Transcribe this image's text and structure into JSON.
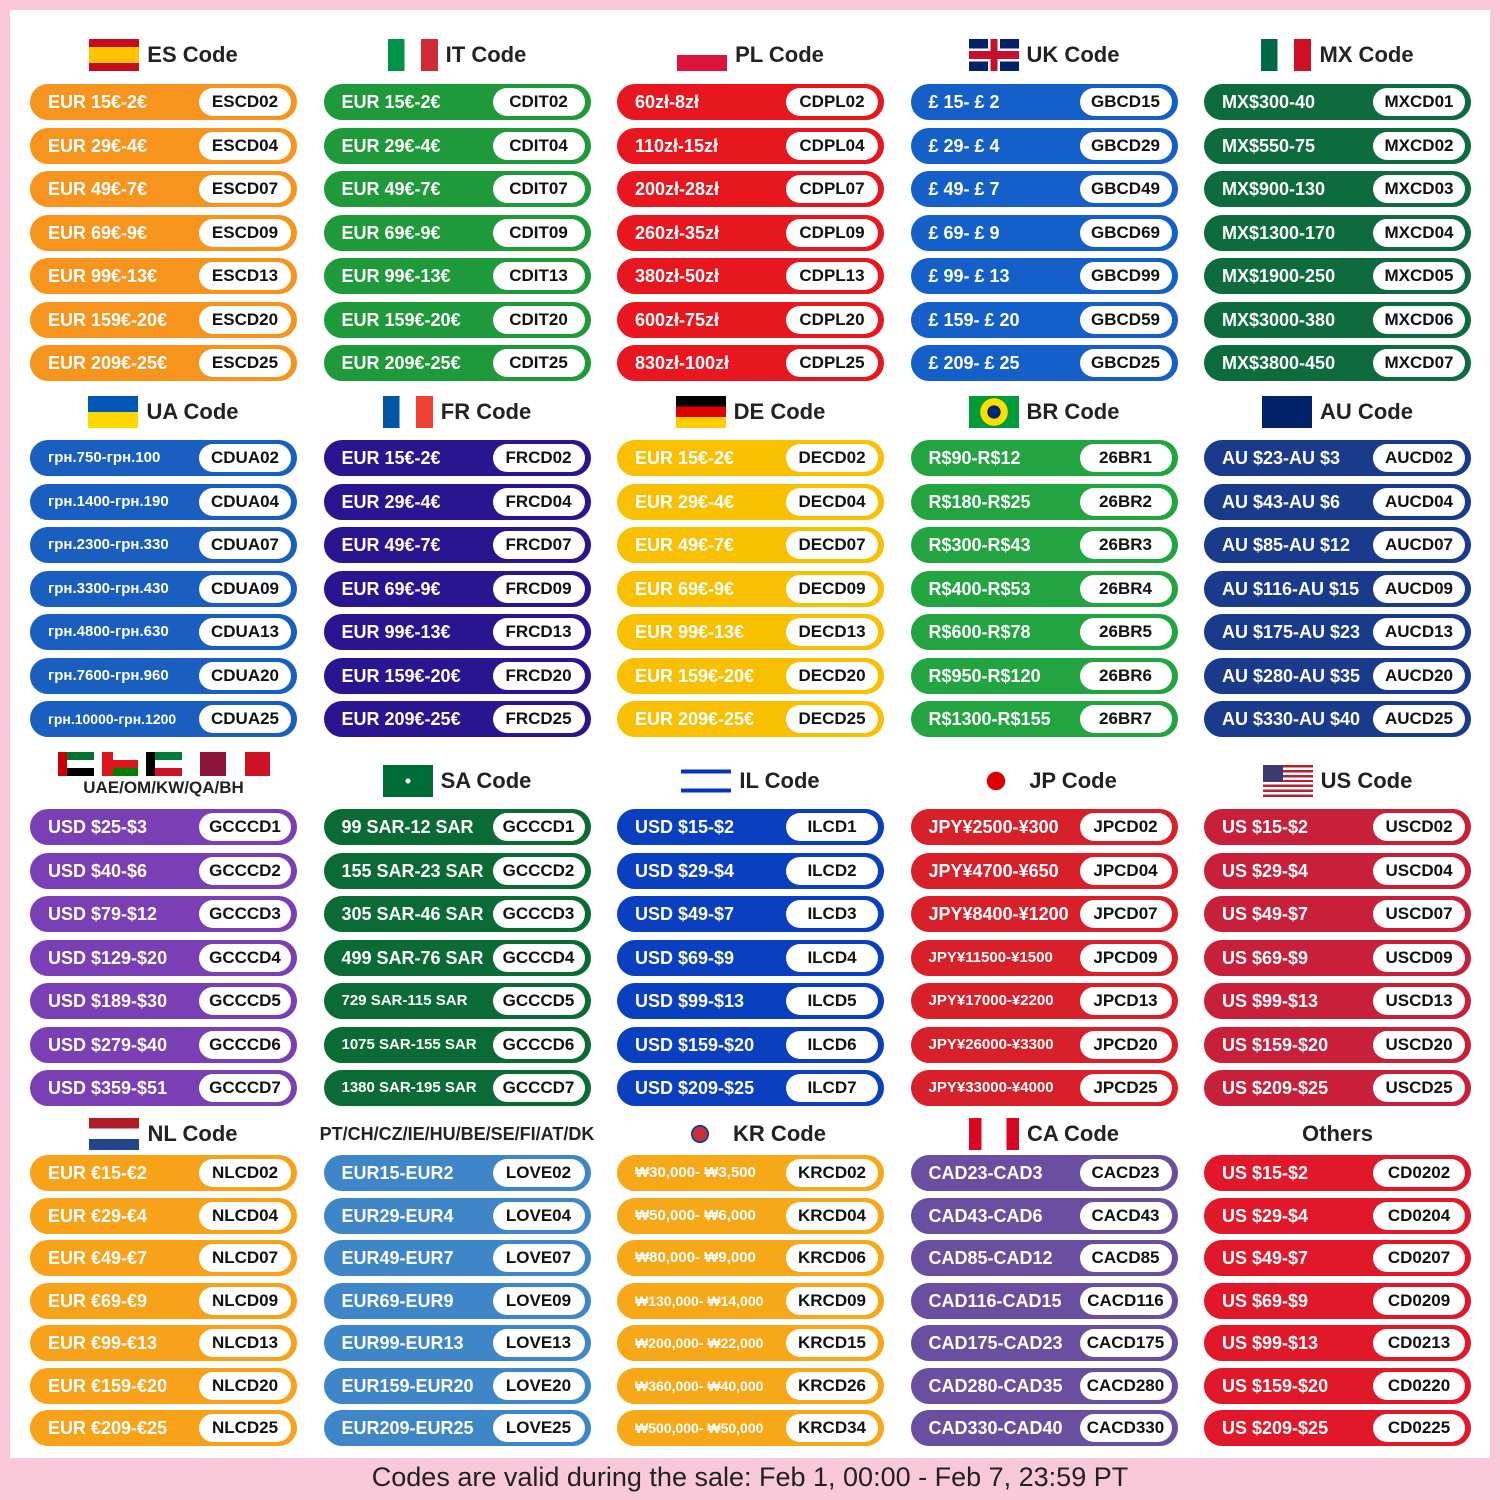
{
  "sections": [
    {
      "title": "ES Code",
      "color": "#f7941d",
      "rows": [
        [
          "EUR 15€-2€",
          "ESCD02"
        ],
        [
          "EUR 29€-4€",
          "ESCD04"
        ],
        [
          "EUR 49€-7€",
          "ESCD07"
        ],
        [
          "EUR 69€-9€",
          "ESCD09"
        ],
        [
          "EUR 99€-13€",
          "ESCD13"
        ],
        [
          "EUR 159€-20€",
          "ESCD20"
        ],
        [
          "EUR 209€-25€",
          "ESCD25"
        ]
      ]
    },
    {
      "title": "IT Code",
      "color": "#1e9a3a",
      "rows": [
        [
          "EUR 15€-2€",
          "CDIT02"
        ],
        [
          "EUR 29€-4€",
          "CDIT04"
        ],
        [
          "EUR 49€-7€",
          "CDIT07"
        ],
        [
          "EUR 69€-9€",
          "CDIT09"
        ],
        [
          "EUR 99€-13€",
          "CDIT13"
        ],
        [
          "EUR 159€-20€",
          "CDIT20"
        ],
        [
          "EUR 209€-25€",
          "CDIT25"
        ]
      ]
    },
    {
      "title": "PL Code",
      "color": "#e8161f",
      "rows": [
        [
          "60zł-8zł",
          "CDPL02"
        ],
        [
          "110zł-15zł",
          "CDPL04"
        ],
        [
          "200zł-28zł",
          "CDPL07"
        ],
        [
          "260zł-35zł",
          "CDPL09"
        ],
        [
          "380zł-50zł",
          "CDPL13"
        ],
        [
          "600zł-75zł",
          "CDPL20"
        ],
        [
          "830zł-100zł",
          "CDPL25"
        ]
      ]
    },
    {
      "title": "UK Code",
      "color": "#1560c8",
      "rows": [
        [
          "£ 15- £ 2",
          "GBCD15"
        ],
        [
          "£ 29- £ 4",
          "GBCD29"
        ],
        [
          "£ 49- £ 7",
          "GBCD49"
        ],
        [
          "£ 69- £ 9",
          "GBCD69"
        ],
        [
          "£ 99- £ 13",
          "GBCD99"
        ],
        [
          "£ 159- £ 20",
          "GBCD59"
        ],
        [
          "£ 209- £ 25",
          "GBCD25"
        ]
      ]
    },
    {
      "title": "MX Code",
      "color": "#0d6b3e",
      "rows": [
        [
          "MX$300-40",
          "MXCD01"
        ],
        [
          "MX$550-75",
          "MXCD02"
        ],
        [
          "MX$900-130",
          "MXCD03"
        ],
        [
          "MX$1300-170",
          "MXCD04"
        ],
        [
          "MX$1900-250",
          "MXCD05"
        ],
        [
          "MX$3000-380",
          "MXCD06"
        ],
        [
          "MX$3800-450",
          "MXCD07"
        ]
      ]
    },
    {
      "title": "UA Code",
      "color": "#1a5fc0",
      "rows": [
        [
          "грн.750-грн.100",
          "CDUA02"
        ],
        [
          "грн.1400-грн.190",
          "CDUA04"
        ],
        [
          "грн.2300-грн.330",
          "CDUA07"
        ],
        [
          "грн.3300-грн.430",
          "CDUA09"
        ],
        [
          "грн.4800-грн.630",
          "CDUA13"
        ],
        [
          "грн.7600-грн.960",
          "CDUA20"
        ],
        [
          "грн.10000-грн.1200",
          "CDUA25"
        ]
      ]
    },
    {
      "title": "FR Code",
      "color": "#2a1590",
      "rows": [
        [
          "EUR 15€-2€",
          "FRCD02"
        ],
        [
          "EUR 29€-4€",
          "FRCD04"
        ],
        [
          "EUR 49€-7€",
          "FRCD07"
        ],
        [
          "EUR 69€-9€",
          "FRCD09"
        ],
        [
          "EUR 99€-13€",
          "FRCD13"
        ],
        [
          "EUR 159€-20€",
          "FRCD20"
        ],
        [
          "EUR 209€-25€",
          "FRCD25"
        ]
      ]
    },
    {
      "title": "DE Code",
      "color": "#f8c000",
      "rows": [
        [
          "EUR 15€-2€",
          "DECD02"
        ],
        [
          "EUR 29€-4€",
          "DECD04"
        ],
        [
          "EUR 49€-7€",
          "DECD07"
        ],
        [
          "EUR 69€-9€",
          "DECD09"
        ],
        [
          "EUR 99€-13€",
          "DECD13"
        ],
        [
          "EUR 159€-20€",
          "DECD20"
        ],
        [
          "EUR 209€-25€",
          "DECD25"
        ]
      ]
    },
    {
      "title": "BR Code",
      "color": "#22a540",
      "rows": [
        [
          "R$90-R$12",
          "26BR1"
        ],
        [
          "R$180-R$25",
          "26BR2"
        ],
        [
          "R$300-R$43",
          "26BR3"
        ],
        [
          "R$400-R$53",
          "26BR4"
        ],
        [
          "R$600-R$78",
          "26BR5"
        ],
        [
          "R$950-R$120",
          "26BR6"
        ],
        [
          "R$1300-R$155",
          "26BR7"
        ]
      ]
    },
    {
      "title": "AU Code",
      "color": "#1a3a8c",
      "rows": [
        [
          "AU $23-AU $3",
          "AUCD02"
        ],
        [
          "AU $43-AU $6",
          "AUCD04"
        ],
        [
          "AU $85-AU $12",
          "AUCD07"
        ],
        [
          "AU $116-AU $15",
          "AUCD09"
        ],
        [
          "AU $175-AU $23",
          "AUCD13"
        ],
        [
          "AU $280-AU $35",
          "AUCD20"
        ],
        [
          "AU $330-AU $40",
          "AUCD25"
        ]
      ]
    },
    {
      "title": "UAE/OM/KW/QA/BH",
      "color": "#7b3fb5",
      "rows": [
        [
          "USD $25-$3",
          "GCCCD1"
        ],
        [
          "USD $40-$6",
          "GCCCD2"
        ],
        [
          "USD $79-$12",
          "GCCCD3"
        ],
        [
          "USD $129-$20",
          "GCCCD4"
        ],
        [
          "USD $189-$30",
          "GCCCD5"
        ],
        [
          "USD $279-$40",
          "GCCCD6"
        ],
        [
          "USD $359-$51",
          "GCCCD7"
        ]
      ]
    },
    {
      "title": "SA Code",
      "color": "#0a6b35",
      "rows": [
        [
          "99 SAR-12 SAR",
          "GCCCD1"
        ],
        [
          "155 SAR-23 SAR",
          "GCCCD2"
        ],
        [
          "305 SAR-46 SAR",
          "GCCCD3"
        ],
        [
          "499 SAR-76 SAR",
          "GCCCD4"
        ],
        [
          "729 SAR-115 SAR",
          "GCCCD5"
        ],
        [
          "1075 SAR-155 SAR",
          "GCCCD6"
        ],
        [
          "1380 SAR-195 SAR",
          "GCCCD7"
        ]
      ]
    },
    {
      "title": "IL Code",
      "color": "#0a3fc0",
      "rows": [
        [
          "USD $15-$2",
          "ILCD1"
        ],
        [
          "USD $29-$4",
          "ILCD2"
        ],
        [
          "USD $49-$7",
          "ILCD3"
        ],
        [
          "USD $69-$9",
          "ILCD4"
        ],
        [
          "USD $99-$13",
          "ILCD5"
        ],
        [
          "USD $159-$20",
          "ILCD6"
        ],
        [
          "USD $209-$25",
          "ILCD7"
        ]
      ]
    },
    {
      "title": "JP Code",
      "color": "#d8202a",
      "rows": [
        [
          "JPY¥2500-¥300",
          "JPCD02"
        ],
        [
          "JPY¥4700-¥650",
          "JPCD04"
        ],
        [
          "JPY¥8400-¥1200",
          "JPCD07"
        ],
        [
          "JPY¥11500-¥1500",
          "JPCD09"
        ],
        [
          "JPY¥17000-¥2200",
          "JPCD13"
        ],
        [
          "JPY¥26000-¥3300",
          "JPCD20"
        ],
        [
          "JPY¥33000-¥4000",
          "JPCD25"
        ]
      ]
    },
    {
      "title": "US Code",
      "color": "#c8203a",
      "rows": [
        [
          "US $15-$2",
          "USCD02"
        ],
        [
          "US $29-$4",
          "USCD04"
        ],
        [
          "US $49-$7",
          "USCD07"
        ],
        [
          "US $69-$9",
          "USCD09"
        ],
        [
          "US $99-$13",
          "USCD13"
        ],
        [
          "US $159-$20",
          "USCD20"
        ],
        [
          "US $209-$25",
          "USCD25"
        ]
      ]
    },
    {
      "title": "NL Code",
      "color": "#f7a218",
      "rows": [
        [
          "EUR €15-€2",
          "NLCD02"
        ],
        [
          "EUR €29-€4",
          "NLCD04"
        ],
        [
          "EUR €49-€7",
          "NLCD07"
        ],
        [
          "EUR €69-€9",
          "NLCD09"
        ],
        [
          "EUR €99-€13",
          "NLCD13"
        ],
        [
          "EUR €159-€20",
          "NLCD20"
        ],
        [
          "EUR €209-€25",
          "NLCD25"
        ]
      ]
    },
    {
      "title": "PT/CH/CZ/IE/HU/BE/SE/FI/AT/DK",
      "color": "#3f86c8",
      "rows": [
        [
          "EUR15-EUR2",
          "LOVE02"
        ],
        [
          "EUR29-EUR4",
          "LOVE04"
        ],
        [
          "EUR49-EUR7",
          "LOVE07"
        ],
        [
          "EUR69-EUR9",
          "LOVE09"
        ],
        [
          "EUR99-EUR13",
          "LOVE13"
        ],
        [
          "EUR159-EUR20",
          "LOVE20"
        ],
        [
          "EUR209-EUR25",
          "LOVE25"
        ]
      ]
    },
    {
      "title": "KR Code",
      "color": "#f7a818",
      "rows": [
        [
          "₩30,000- ₩3,500",
          "KRCD02"
        ],
        [
          "₩50,000- ₩6,000",
          "KRCD04"
        ],
        [
          "₩80,000- ₩9,000",
          "KRCD06"
        ],
        [
          "₩130,000- ₩14,000",
          "KRCD09"
        ],
        [
          "₩200,000- ₩22,000",
          "KRCD15"
        ],
        [
          "₩360,000- ₩40,000",
          "KRCD26"
        ],
        [
          "₩500,000- ₩50,000",
          "KRCD34"
        ]
      ]
    },
    {
      "title": "CA Code",
      "color": "#6a4fa0",
      "rows": [
        [
          "CAD23-CAD3",
          "CACD23"
        ],
        [
          "CAD43-CAD6",
          "CACD43"
        ],
        [
          "CAD85-CAD12",
          "CACD85"
        ],
        [
          "CAD116-CAD15",
          "CACD116"
        ],
        [
          "CAD175-CAD23",
          "CACD175"
        ],
        [
          "CAD280-CAD35",
          "CACD280"
        ],
        [
          "CAD330-CAD40",
          "CACD330"
        ]
      ]
    },
    {
      "title": "Others",
      "color": "#e0182a",
      "rows": [
        [
          "US $15-$2",
          "CD0202"
        ],
        [
          "US $29-$4",
          "CD0204"
        ],
        [
          "US $49-$7",
          "CD0207"
        ],
        [
          "US $69-$9",
          "CD0209"
        ],
        [
          "US $99-$13",
          "CD0213"
        ],
        [
          "US $159-$20",
          "CD0220"
        ],
        [
          "US $209-$25",
          "CD0225"
        ]
      ]
    }
  ],
  "footer": "Codes are valid during the sale: Feb 1, 00:00 - Feb 7, 23:59 PT"
}
